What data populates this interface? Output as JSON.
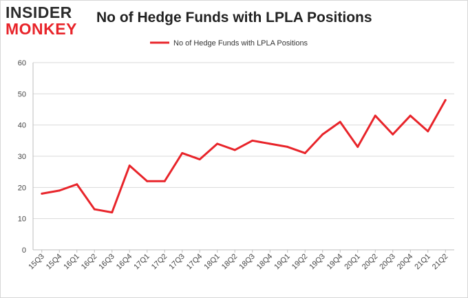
{
  "logo": {
    "line1": "INSIDER",
    "line2": "MONKEY"
  },
  "chart_data": {
    "type": "line",
    "title": "No of Hedge Funds with LPLA Positions",
    "xlabel": "",
    "ylabel": "",
    "ylim": [
      0,
      60
    ],
    "yticks": [
      0,
      10,
      20,
      30,
      40,
      50,
      60
    ],
    "grid": true,
    "legend_position": "top",
    "color": "#e8242a",
    "categories": [
      "15Q3",
      "15Q4",
      "16Q1",
      "16Q2",
      "16Q3",
      "16Q4",
      "17Q1",
      "17Q2",
      "17Q3",
      "17Q4",
      "18Q1",
      "18Q2",
      "18Q3",
      "18Q4",
      "19Q1",
      "19Q2",
      "19Q3",
      "19Q4",
      "20Q1",
      "20Q2",
      "20Q3",
      "20Q4",
      "21Q1",
      "21Q2"
    ],
    "series": [
      {
        "name": "No of Hedge Funds with LPLA Positions",
        "values": [
          18,
          19,
          21,
          13,
          12,
          27,
          22,
          22,
          31,
          29,
          34,
          32,
          35,
          34,
          33,
          31,
          37,
          41,
          33,
          43,
          37,
          43,
          38,
          48
        ]
      }
    ]
  }
}
